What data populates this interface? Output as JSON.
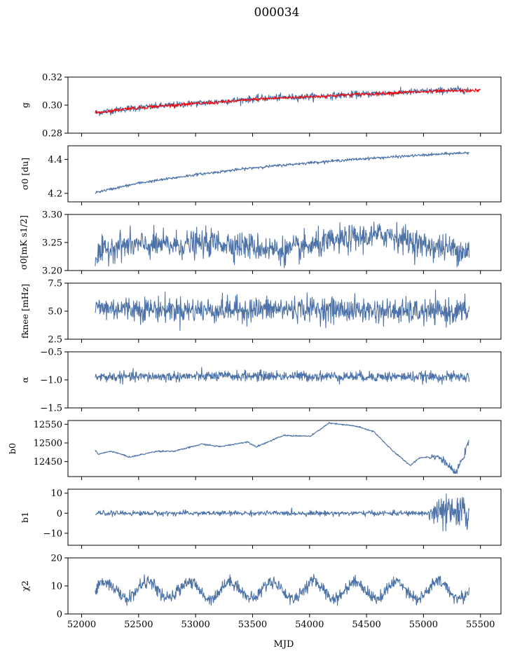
{
  "title": "000034",
  "x_label": "MJD",
  "x_ticks": [
    52000,
    52500,
    53000,
    53500,
    54000,
    54500,
    55000,
    55500
  ],
  "colors": {
    "series": "#4c72a8",
    "fit": "#ff0000"
  },
  "chart_data": [
    {
      "id": "g",
      "type": "line",
      "ylabel": "g",
      "ylim": [
        0.28,
        0.32
      ],
      "yticks": [
        0.28,
        0.3,
        0.32
      ],
      "ytick_labels": [
        "0.28",
        "0.30",
        "0.32"
      ],
      "xlim": [
        51880,
        55680
      ],
      "series": [
        {
          "role": "data",
          "x_start": 52120,
          "x_end": 55400,
          "knots": [
            [
              52120,
              0.2945
            ],
            [
              52400,
              0.2975
            ],
            [
              52800,
              0.3
            ],
            [
              53200,
              0.3025
            ],
            [
              53600,
              0.305
            ],
            [
              54000,
              0.306
            ],
            [
              54400,
              0.3075
            ],
            [
              54800,
              0.309
            ],
            [
              55200,
              0.3105
            ],
            [
              55400,
              0.311
            ]
          ],
          "noise": 0.0012,
          "trend": 0
        },
        {
          "role": "fit",
          "x_start": 52120,
          "x_end": 55500,
          "knots": [
            [
              52120,
              0.2945
            ],
            [
              52400,
              0.2975
            ],
            [
              52800,
              0.3
            ],
            [
              53200,
              0.302
            ],
            [
              53600,
              0.3045
            ],
            [
              54000,
              0.306
            ],
            [
              54400,
              0.3075
            ],
            [
              54800,
              0.309
            ],
            [
              55200,
              0.31
            ],
            [
              55500,
              0.3105
            ]
          ],
          "noise": 0.0006
        }
      ]
    },
    {
      "id": "sigma0",
      "type": "line",
      "ylabel": "σ0 [du]",
      "ylim": [
        4.15,
        4.48
      ],
      "yticks": [
        4.2,
        4.4
      ],
      "ytick_labels": [
        "4.2",
        "4.4"
      ],
      "xlim": [
        51880,
        55680
      ],
      "series": [
        {
          "role": "data",
          "x_start": 52120,
          "x_end": 55400,
          "knots": [
            [
              52120,
              4.205
            ],
            [
              52500,
              4.26
            ],
            [
              53000,
              4.31
            ],
            [
              53500,
              4.35
            ],
            [
              54000,
              4.38
            ],
            [
              54500,
              4.405
            ],
            [
              55000,
              4.425
            ],
            [
              55400,
              4.44
            ]
          ],
          "noise": 0.004
        }
      ]
    },
    {
      "id": "sigma0_t",
      "type": "line",
      "ylabel": "σ0[mK s1/2]",
      "ylim": [
        3.2,
        3.3
      ],
      "yticks": [
        3.2,
        3.25,
        3.3
      ],
      "ytick_labels": [
        "3.20",
        "3.25",
        "3.30"
      ],
      "xlim": [
        51880,
        55680
      ],
      "series": [
        {
          "role": "data",
          "x_start": 52120,
          "x_end": 55400,
          "knots": [
            [
              52120,
              3.225
            ],
            [
              52300,
              3.245
            ],
            [
              52800,
              3.245
            ],
            [
              53200,
              3.25
            ],
            [
              53800,
              3.235
            ],
            [
              54300,
              3.255
            ],
            [
              54700,
              3.265
            ],
            [
              55000,
              3.245
            ],
            [
              55400,
              3.235
            ]
          ],
          "noise": 0.012
        }
      ]
    },
    {
      "id": "fknee",
      "type": "line",
      "ylabel": "fknee [mHz]",
      "ylim": [
        2.5,
        7.5
      ],
      "yticks": [
        2.5,
        5.0,
        7.5
      ],
      "ytick_labels": [
        "2.5",
        "5.0",
        "7.5"
      ],
      "xlim": [
        51880,
        55680
      ],
      "series": [
        {
          "role": "data",
          "x_start": 52120,
          "x_end": 55400,
          "knots": [
            [
              52120,
              5.3
            ],
            [
              53000,
              5.1
            ],
            [
              54000,
              5.2
            ],
            [
              55000,
              4.9
            ],
            [
              55400,
              5.0
            ]
          ],
          "noise": 0.55
        }
      ]
    },
    {
      "id": "alpha",
      "type": "line",
      "ylabel": "α",
      "ylim": [
        -1.5,
        -0.5
      ],
      "yticks": [
        -1.5,
        -1.0,
        -0.5
      ],
      "ytick_labels": [
        "−1.5",
        "−1.0",
        "−0.5"
      ],
      "xlim": [
        51880,
        55680
      ],
      "series": [
        {
          "role": "data",
          "x_start": 52120,
          "x_end": 55400,
          "knots": [
            [
              52120,
              -0.95
            ],
            [
              53500,
              -0.93
            ],
            [
              54500,
              -0.94
            ],
            [
              55400,
              -0.95
            ]
          ],
          "noise": 0.045
        }
      ]
    },
    {
      "id": "b0",
      "type": "line",
      "ylabel": "b0",
      "ylim": [
        12410,
        12560
      ],
      "yticks": [
        12450,
        12500,
        12550
      ],
      "ytick_labels": [
        "12450",
        "12500",
        "12550"
      ],
      "xlim": [
        51880,
        55680
      ],
      "series": [
        {
          "role": "data",
          "x_start": 52120,
          "x_end": 55400,
          "knots": [
            [
              52120,
              12480
            ],
            [
              52150,
              12470
            ],
            [
              52300,
              12478
            ],
            [
              52500,
              12462
            ],
            [
              52800,
              12478
            ],
            [
              53000,
              12478
            ],
            [
              53300,
              12497
            ],
            [
              53500,
              12490
            ],
            [
              53800,
              12503
            ],
            [
              53900,
              12490
            ],
            [
              54200,
              12520
            ],
            [
              54500,
              12518
            ],
            [
              54700,
              12553
            ],
            [
              55000,
              12545
            ],
            [
              55200,
              12530
            ],
            [
              55400,
              12480
            ],
            [
              55600,
              12440
            ],
            [
              55700,
              12460
            ],
            [
              55900,
              12465
            ],
            [
              56000,
              12445
            ],
            [
              56100,
              12418
            ],
            [
              56200,
              12470
            ],
            [
              56250,
              12505
            ]
          ],
          "x_scale_from": [
            52120,
            56250
          ],
          "x_scale_to": [
            52120,
            55400
          ],
          "noise": 1.0
        }
      ]
    },
    {
      "id": "b1",
      "type": "line",
      "ylabel": "b1",
      "ylim": [
        -16,
        12
      ],
      "yticks": [
        -10,
        0,
        10
      ],
      "ytick_labels": [
        "−10",
        "0",
        "10"
      ],
      "xlim": [
        51880,
        55680
      ],
      "series": [
        {
          "role": "data",
          "x_start": 52120,
          "x_end": 55400,
          "knots": [
            [
              52120,
              0
            ],
            [
              54500,
              0
            ],
            [
              55400,
              0
            ]
          ],
          "noise": 0.6
        }
      ]
    },
    {
      "id": "chi2",
      "type": "line",
      "ylabel": "χ2",
      "ylim": [
        0,
        20
      ],
      "yticks": [
        0,
        10,
        20
      ],
      "ytick_labels": [
        "0",
        "10",
        "20"
      ],
      "xlim": [
        51880,
        55680
      ],
      "series": [
        {
          "role": "data",
          "x_start": 52120,
          "x_end": 55400,
          "mean": 8.5,
          "amplitude": 3.0,
          "period": 365,
          "noise": 1.1
        }
      ]
    }
  ]
}
